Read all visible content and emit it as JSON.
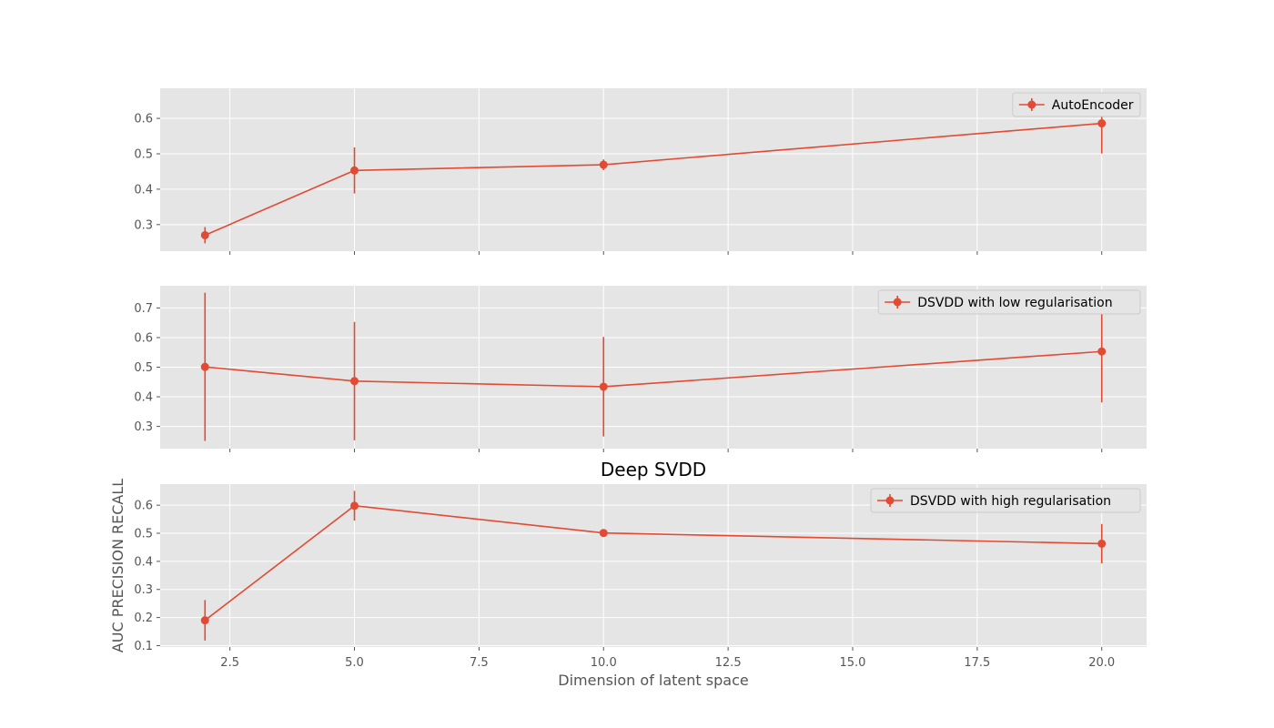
{
  "figure": {
    "background": "#ffffff",
    "plot_background": "#e5e5e5",
    "grid_color": "#ffffff",
    "series_color": "#e24a33",
    "text_color": "#555555"
  },
  "chart_data": [
    {
      "type": "line",
      "error_bars": true,
      "title": "",
      "xlabel": "",
      "ylabel": "",
      "x": [
        2,
        5,
        10,
        20
      ],
      "xlim": [
        1.1,
        20.9
      ],
      "ylim": [
        0.225,
        0.685
      ],
      "yticks": [
        0.3,
        0.4,
        0.5,
        0.6
      ],
      "ytick_labels": [
        "0.3",
        "0.4",
        "0.5",
        "0.6"
      ],
      "grid": true,
      "legend_position": "upper right",
      "series": [
        {
          "name": "AutoEncoder",
          "values": [
            0.27,
            0.453,
            0.469,
            0.586
          ],
          "errors": [
            0.023,
            0.065,
            0.015,
            0.085
          ]
        }
      ]
    },
    {
      "type": "line",
      "error_bars": true,
      "title": "",
      "xlabel": "",
      "ylabel": "",
      "x": [
        2,
        5,
        10,
        20
      ],
      "xlim": [
        1.1,
        20.9
      ],
      "ylim": [
        0.225,
        0.775
      ],
      "yticks": [
        0.3,
        0.4,
        0.5,
        0.6,
        0.7
      ],
      "ytick_labels": [
        "0.3",
        "0.4",
        "0.5",
        "0.6",
        "0.7"
      ],
      "grid": true,
      "legend_position": "upper right",
      "series": [
        {
          "name": "DSVDD with low regularisation",
          "values": [
            0.501,
            0.453,
            0.434,
            0.553
          ],
          "errors": [
            0.25,
            0.2,
            0.168,
            0.172
          ]
        }
      ]
    },
    {
      "type": "line",
      "error_bars": true,
      "title": "Deep SVDD",
      "xlabel": "Dimension of latent space",
      "ylabel": "AUC PRECISION RECALL",
      "x": [
        2,
        5,
        10,
        20
      ],
      "xlim": [
        1.1,
        20.9
      ],
      "ylim": [
        0.095,
        0.675
      ],
      "yticks": [
        0.1,
        0.2,
        0.3,
        0.4,
        0.5,
        0.6
      ],
      "ytick_labels": [
        "0.1",
        "0.2",
        "0.3",
        "0.4",
        "0.5",
        "0.6"
      ],
      "xticks": [
        2.5,
        5.0,
        7.5,
        10.0,
        12.5,
        15.0,
        17.5,
        20.0
      ],
      "xtick_labels": [
        "2.5",
        "5.0",
        "7.5",
        "10.0",
        "12.5",
        "15.0",
        "17.5",
        "20.0"
      ],
      "grid": true,
      "legend_position": "upper right",
      "series": [
        {
          "name": "DSVDD with high regularisation",
          "values": [
            0.19,
            0.598,
            0.501,
            0.463
          ],
          "errors": [
            0.072,
            0.053,
            0.0,
            0.07
          ]
        }
      ]
    }
  ]
}
